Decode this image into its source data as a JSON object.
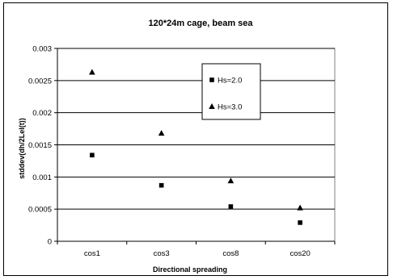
{
  "chart_data": {
    "type": "scatter",
    "title": "120*24m cage, beam sea",
    "xlabel": "Directional spreading",
    "ylabel": "stddev(dh/2Lel(t))",
    "categories": [
      "cos1",
      "cos3",
      "cos8",
      "cos20"
    ],
    "ylim": [
      0,
      0.003
    ],
    "yticks": [
      "0",
      "0.0005",
      "0.001",
      "0.0015",
      "0.002",
      "0.0025",
      "0.003"
    ],
    "ytick_values": [
      0,
      0.0005,
      0.001,
      0.0015,
      0.002,
      0.0025,
      0.003
    ],
    "grid": true,
    "legend_position": "top-right",
    "series": [
      {
        "name": "Hs=2.0",
        "marker": "square",
        "color": "#000000",
        "values": [
          0.00134,
          0.00087,
          0.00054,
          0.00029
        ]
      },
      {
        "name": "Hs=3.0",
        "marker": "triangle",
        "color": "#000000",
        "values": [
          0.00263,
          0.00168,
          0.00094,
          0.00052
        ]
      }
    ]
  }
}
